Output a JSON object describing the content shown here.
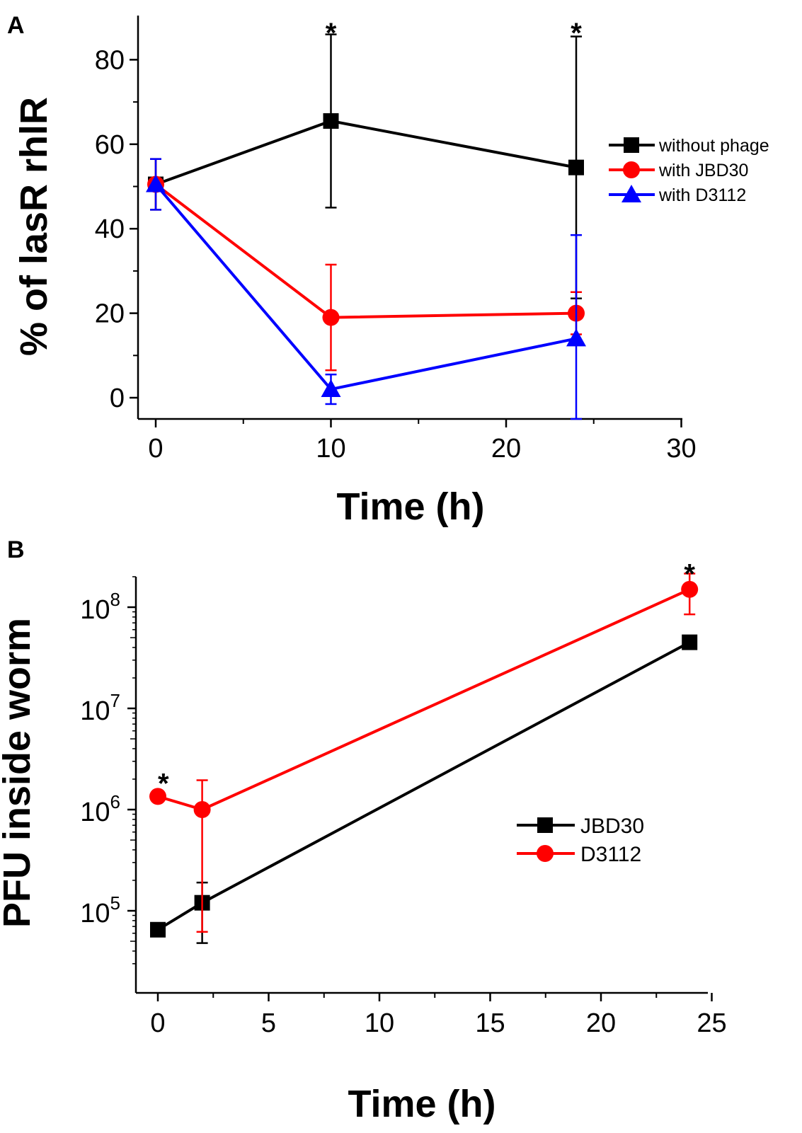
{
  "chart_data": [
    {
      "panel": "A",
      "type": "line",
      "title": "",
      "xlabel": "Time (h)",
      "ylabel": "% of lasR rhlR",
      "xlim": [
        -1,
        30
      ],
      "ylim": [
        -5,
        90
      ],
      "x_ticks": [
        0,
        10,
        20,
        30
      ],
      "x_tick_labels": [
        "0",
        "10",
        "20",
        "30"
      ],
      "y_ticks": [
        0,
        20,
        40,
        60,
        80
      ],
      "y_tick_labels": [
        "0",
        "20",
        "40",
        "60",
        "80"
      ],
      "legend_position": "right",
      "series": [
        {
          "name": "without phage",
          "color": "#000000",
          "marker": "square",
          "x": [
            0,
            10,
            24
          ],
          "y": [
            50.5,
            65.5,
            54.5
          ],
          "err": [
            6,
            20.5,
            31
          ]
        },
        {
          "name": "with JBD30",
          "color": "#ff0000",
          "marker": "circle",
          "x": [
            0,
            10,
            24
          ],
          "y": [
            50.5,
            19,
            20
          ],
          "err": [
            6,
            12.5,
            5
          ]
        },
        {
          "name": "with D3112",
          "color": "#0000ff",
          "marker": "triangle",
          "x": [
            0,
            10,
            24
          ],
          "y": [
            50.5,
            2,
            14
          ],
          "err": [
            6,
            3.5,
            24.5
          ]
        }
      ],
      "annotations": [
        {
          "text": "*",
          "x": 10,
          "y": 90.5
        },
        {
          "text": "*",
          "x": 24,
          "y": 90.5
        }
      ]
    },
    {
      "panel": "B",
      "type": "line",
      "title": "",
      "xlabel": "Time (h)",
      "ylabel": "PFU inside  worm",
      "y_scale": "log",
      "xlim": [
        -1,
        25
      ],
      "ylim_log10": [
        4.35,
        8.38
      ],
      "x_ticks": [
        0,
        5,
        10,
        15,
        20,
        25
      ],
      "x_tick_labels": [
        "0",
        "5",
        "10",
        "15",
        "20",
        "25"
      ],
      "y_ticks_log10": [
        5,
        6,
        7,
        8
      ],
      "y_tick_labels": [
        {
          "base": "10",
          "exp": "5"
        },
        {
          "base": "10",
          "exp": "6"
        },
        {
          "base": "10",
          "exp": "7"
        },
        {
          "base": "10",
          "exp": "8"
        }
      ],
      "legend_position": "right",
      "series": [
        {
          "name": "JBD30",
          "color": "#000000",
          "marker": "square",
          "x": [
            0,
            2,
            24
          ],
          "y": [
            65000,
            120000,
            45000000
          ],
          "err_low": [
            58000,
            48000,
            40000000
          ],
          "err_high": [
            72000,
            190000,
            50000000
          ]
        },
        {
          "name": "D3112",
          "color": "#ff0000",
          "marker": "circle",
          "x": [
            0,
            2,
            24
          ],
          "y": [
            1350000,
            1000000,
            150000000
          ],
          "err_low": [
            1300000,
            62000,
            85000000
          ],
          "err_high": [
            1400000,
            1950000,
            215000000
          ]
        }
      ],
      "annotations": [
        {
          "text": "*",
          "x": 0.25,
          "y": 2300000
        },
        {
          "text": "*",
          "x": 24,
          "y": 270000000
        }
      ]
    }
  ]
}
